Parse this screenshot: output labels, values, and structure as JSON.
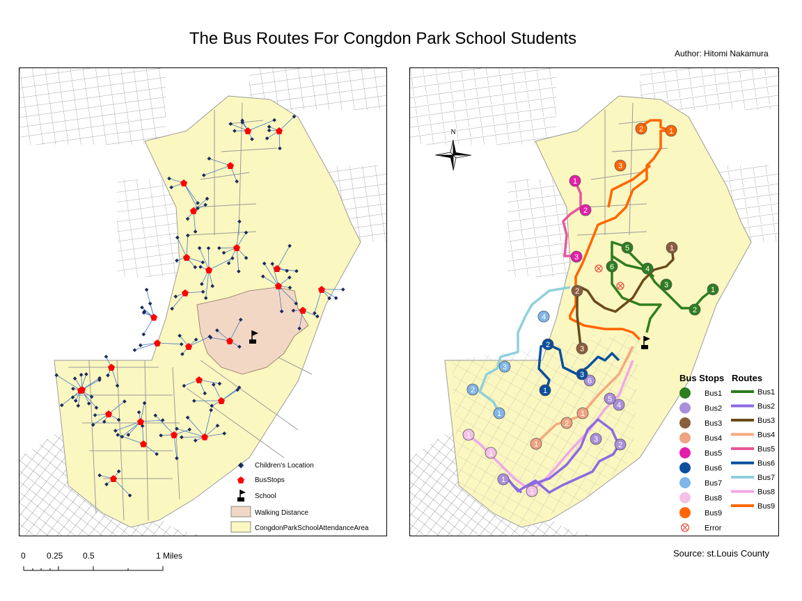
{
  "title": "The Bus Routes For Congdon Park School Students",
  "author": "Author: Hitomi Nakamura",
  "source": "Source: st.Louis County",
  "scale_bar": {
    "labels": [
      "0",
      "0.25",
      "0.5",
      "1 Miles"
    ]
  },
  "left_legend": {
    "items": [
      {
        "symbol": "children-location",
        "label": "Children's Location"
      },
      {
        "symbol": "bus-stop",
        "label": "BusStops"
      },
      {
        "symbol": "school",
        "label": "School"
      },
      {
        "symbol": "walking-distance",
        "label": "Walking Distance"
      },
      {
        "symbol": "attendance-area",
        "label": "CongdonParkSchoolAttendanceArea"
      }
    ]
  },
  "right_legend": {
    "stops_title": "Bus Stops",
    "routes_title": "Routes",
    "stops": [
      {
        "label": "Bus1",
        "color": "#2e7d1f"
      },
      {
        "label": "Bus2",
        "color": "#a98fd9"
      },
      {
        "label": "Bus3",
        "color": "#8b5e3c"
      },
      {
        "label": "Bus4",
        "color": "#f0a481"
      },
      {
        "label": "Bus5",
        "color": "#e41eac"
      },
      {
        "label": "Bus6",
        "color": "#0a4f9e"
      },
      {
        "label": "Bus7",
        "color": "#7fb5e8"
      },
      {
        "label": "Bus8",
        "color": "#f5c0e6"
      },
      {
        "label": "Bus9",
        "color": "#ff6600"
      },
      {
        "label": "Error",
        "color": "#e74c3c"
      }
    ],
    "routes": [
      {
        "label": "Bus1",
        "color": "#2e7d1f"
      },
      {
        "label": "Bus2",
        "color": "#8b6be3"
      },
      {
        "label": "Bus3",
        "color": "#6b4a1a"
      },
      {
        "label": "Bus4",
        "color": "#f5aa7f"
      },
      {
        "label": "Bus5",
        "color": "#e8569c"
      },
      {
        "label": "Bus6",
        "color": "#0a4f9e"
      },
      {
        "label": "Bus7",
        "color": "#8fd0dc"
      },
      {
        "label": "Bus8",
        "color": "#f0a8e8"
      },
      {
        "label": "Bus9",
        "color": "#ff6600"
      }
    ]
  },
  "colors": {
    "attendance_area": "#fbf7c0",
    "walking_distance": "#f2d8c4",
    "roads": "#8a8a8a",
    "bus_stop": "#ff0000",
    "child": "#1b2a5e"
  },
  "north_arrow": "N",
  "stop_markers": [
    {
      "bus": "Bus1",
      "n": "1"
    },
    {
      "bus": "Bus1",
      "n": "2"
    },
    {
      "bus": "Bus1",
      "n": "3"
    },
    {
      "bus": "Bus1",
      "n": "4"
    },
    {
      "bus": "Bus1",
      "n": "5"
    },
    {
      "bus": "Bus1",
      "n": "6"
    },
    {
      "bus": "Bus2",
      "n": "1"
    },
    {
      "bus": "Bus2",
      "n": "2"
    },
    {
      "bus": "Bus2",
      "n": "3"
    },
    {
      "bus": "Bus2",
      "n": "4"
    },
    {
      "bus": "Bus2",
      "n": "5"
    },
    {
      "bus": "Bus2",
      "n": "6"
    },
    {
      "bus": "Bus3",
      "n": "1"
    },
    {
      "bus": "Bus3",
      "n": "2"
    },
    {
      "bus": "Bus3",
      "n": "3"
    },
    {
      "bus": "Bus4",
      "n": "1"
    },
    {
      "bus": "Bus4",
      "n": "1"
    },
    {
      "bus": "Bus4",
      "n": "2"
    },
    {
      "bus": "Bus5",
      "n": "1"
    },
    {
      "bus": "Bus5",
      "n": "2"
    },
    {
      "bus": "Bus5",
      "n": "3"
    },
    {
      "bus": "Bus6",
      "n": "1"
    },
    {
      "bus": "Bus6",
      "n": "2"
    },
    {
      "bus": "Bus6",
      "n": "3"
    },
    {
      "bus": "Bus7",
      "n": "1"
    },
    {
      "bus": "Bus7",
      "n": "2"
    },
    {
      "bus": "Bus7",
      "n": "3"
    },
    {
      "bus": "Bus7",
      "n": "4"
    },
    {
      "bus": "Bus8",
      "n": "1"
    },
    {
      "bus": "Bus8",
      "n": "1"
    },
    {
      "bus": "Bus8",
      "n": "1"
    },
    {
      "bus": "Bus9",
      "n": "1"
    },
    {
      "bus": "Bus9",
      "n": "2"
    },
    {
      "bus": "Bus9",
      "n": "3"
    }
  ]
}
